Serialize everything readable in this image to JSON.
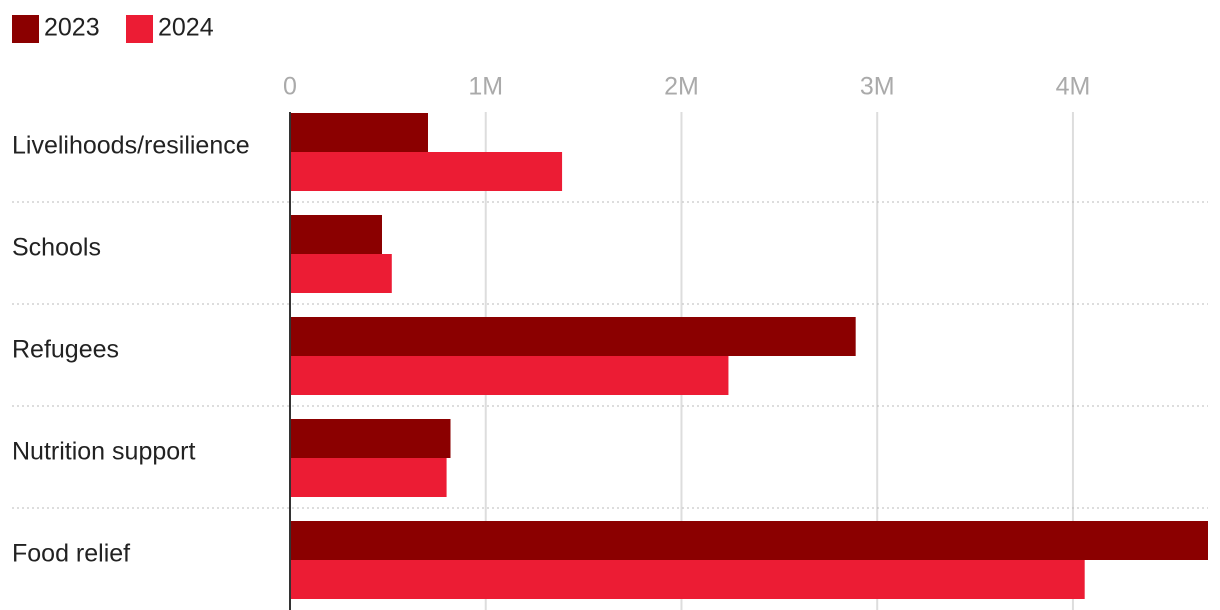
{
  "chart_data": {
    "type": "bar",
    "orientation": "horizontal",
    "categories": [
      "Livelihoods/resilience",
      "Schools",
      "Refugees",
      "Nutrition support",
      "Food relief"
    ],
    "series": [
      {
        "name": "2023",
        "color": "#8b0000",
        "values": [
          705000,
          470000,
          2890000,
          820000,
          4690000
        ]
      },
      {
        "name": "2024",
        "color": "#ec1c34",
        "values": [
          1390000,
          520000,
          2240000,
          800000,
          4060000
        ]
      }
    ],
    "xlim": [
      0,
      4690000
    ],
    "xticks": [
      0,
      {
        "value": 1000000,
        "label": "1M"
      },
      {
        "value": 2000000,
        "label": "2M"
      },
      {
        "value": 3000000,
        "label": "3M"
      },
      {
        "value": 4000000,
        "label": "4M"
      }
    ],
    "grid": true,
    "legend": "top-left"
  }
}
